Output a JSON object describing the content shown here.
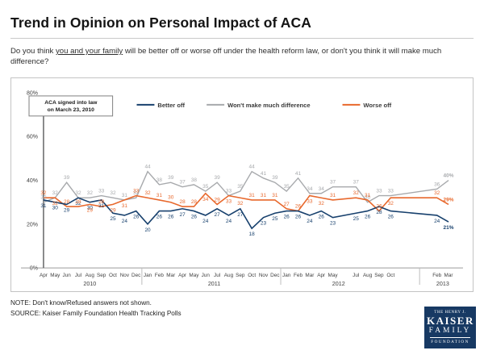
{
  "page": {
    "title": "Trend in Opinion on Personal Impact of ACA",
    "subtitle_prefix": "Do you think ",
    "subtitle_underline": "you and your family",
    "subtitle_suffix": " will be better off or worse off under the health reform law, or don't you think it will make much difference?",
    "note": "NOTE: Don't know/Refused answers not shown.",
    "source": "SOURCE: Kaiser Family Foundation Health Tracking Polls"
  },
  "annotation": {
    "line1": "ACA signed into law",
    "line2": "on March 23, 2010"
  },
  "logo": {
    "line1": "THE HENRY J.",
    "line2": "KAISER",
    "line3": "FAMILY",
    "line4": "FOUNDATION"
  },
  "chart_data": {
    "type": "line",
    "title": "Trend in Opinion on Personal Impact of ACA",
    "ylim": [
      0,
      80
    ],
    "yticks": [
      "0%",
      "20%",
      "40%",
      "60%",
      "80%"
    ],
    "grid": false,
    "legend_position": "top-inside",
    "x_labels": [
      "Apr",
      "May",
      "Jun",
      "Jul",
      "Aug",
      "Sep",
      "Oct",
      "Nov",
      "Dec",
      "Jan",
      "Feb",
      "Mar",
      "Apr",
      "May",
      "Jun",
      "Jul",
      "Aug",
      "Sep",
      "Oct",
      "Nov",
      "Dec",
      "Jan",
      "Feb",
      "Mar",
      "Apr",
      "May",
      "Jul",
      "Aug",
      "Sep",
      "Oct",
      "Feb",
      "Mar"
    ],
    "x_month_index": [
      0,
      1,
      2,
      3,
      4,
      5,
      6,
      7,
      8,
      9,
      10,
      11,
      12,
      13,
      14,
      15,
      16,
      17,
      18,
      19,
      20,
      21,
      22,
      23,
      24,
      25,
      27,
      28,
      29,
      30,
      34,
      35
    ],
    "year_groups": [
      {
        "label": "2010",
        "center": 4
      },
      {
        "label": "2011",
        "center": 14.75
      },
      {
        "label": "2012",
        "center": 25.5
      },
      {
        "label": "2013",
        "center": 34.5
      }
    ],
    "year_separators": [
      8.5,
      20.5,
      32.5
    ],
    "series": [
      {
        "id": "better-off",
        "name": "Better off",
        "color": "#17406d",
        "values": [
          31,
          30,
          29,
          32,
          30,
          31,
          25,
          24,
          26,
          20,
          26,
          26,
          27,
          26,
          24,
          27,
          24,
          27,
          18,
          23,
          25,
          26,
          26,
          24,
          26,
          23,
          25,
          26,
          28,
          26,
          24,
          21
        ]
      },
      {
        "id": "no-difference",
        "name": "Won't make much difference",
        "color": "#a7a9ac",
        "values": [
          30,
          32,
          39,
          32,
          32,
          33,
          32,
          31,
          32,
          44,
          38,
          39,
          37,
          38,
          35,
          39,
          33,
          35,
          44,
          41,
          39,
          35,
          41,
          34,
          34,
          37,
          37,
          30,
          33,
          33,
          36,
          40
        ]
      },
      {
        "id": "worse-off",
        "name": "Worse off",
        "color": "#e8682c",
        "values": [
          32,
          32,
          28,
          28,
          29,
          28,
          29,
          31,
          33,
          32,
          31,
          30,
          28,
          28,
          34,
          29,
          33,
          32,
          31,
          31,
          31,
          27,
          26,
          33,
          32,
          31,
          32,
          31,
          26,
          32,
          32,
          29
        ]
      }
    ],
    "legend": [
      {
        "series": "better-off",
        "x": 156
      },
      {
        "series": "no-difference",
        "x": 243
      },
      {
        "series": "worse-off",
        "x": 412
      }
    ]
  }
}
